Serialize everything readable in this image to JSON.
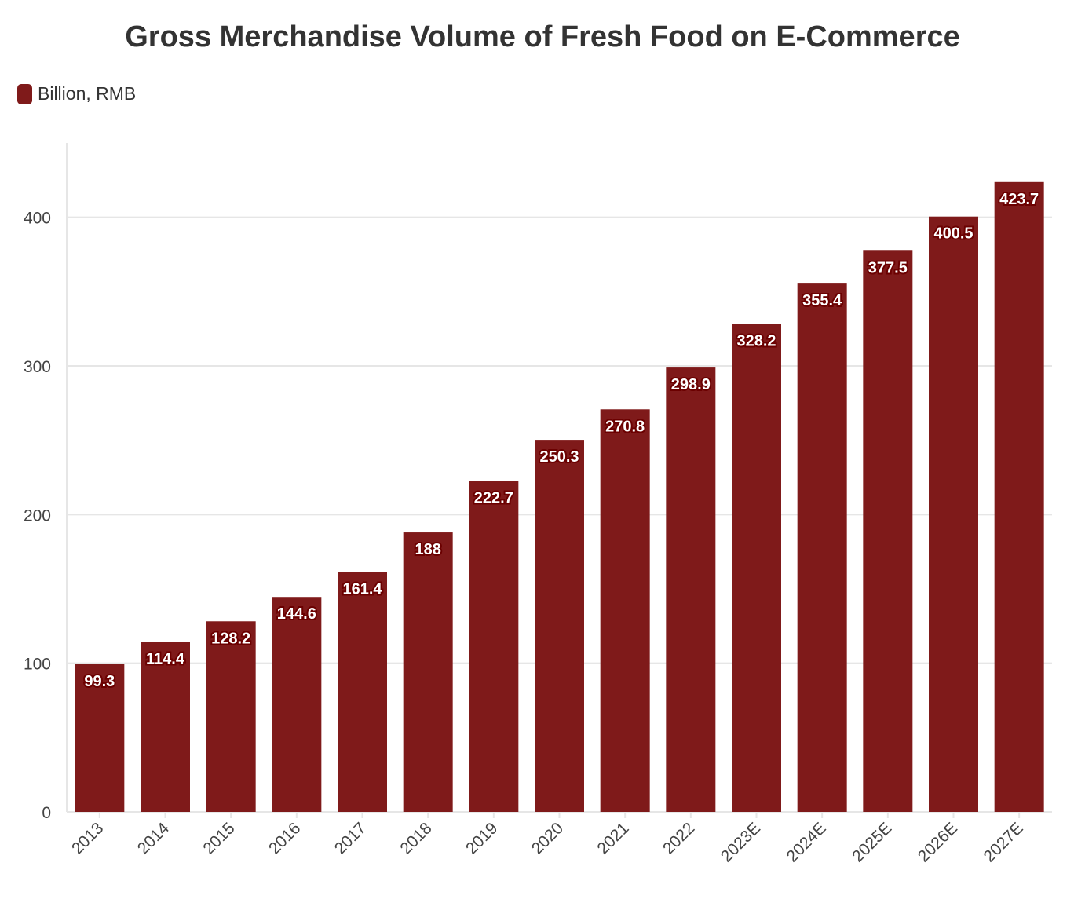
{
  "chart_data": {
    "type": "bar",
    "title": "Gross Merchandise Volume of Fresh Food on E-Commerce",
    "categories": [
      "2013",
      "2014",
      "2015",
      "2016",
      "2017",
      "2018",
      "2019",
      "2020",
      "2021",
      "2022",
      "2023E",
      "2024E",
      "2025E",
      "2026E",
      "2027E"
    ],
    "series": [
      {
        "name": "Billion, RMB",
        "values": [
          99.3,
          114.4,
          128.2,
          144.6,
          161.4,
          188,
          222.7,
          250.3,
          270.8,
          298.9,
          328.2,
          355.4,
          377.5,
          400.5,
          423.7
        ]
      }
    ],
    "xlabel": "",
    "ylabel": "",
    "ylim": [
      0,
      450
    ],
    "yticks": [
      0,
      100,
      200,
      300,
      400
    ],
    "grid": true,
    "legend": "top-left",
    "color": "#7f1a1a"
  }
}
